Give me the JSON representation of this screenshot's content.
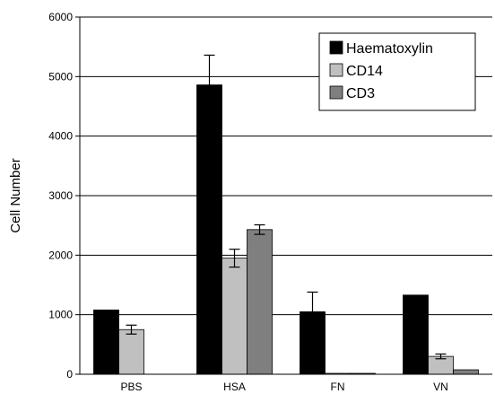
{
  "chart_data": {
    "type": "bar",
    "title": "",
    "xlabel": "",
    "ylabel": "Cell Number",
    "ylim": [
      0,
      6000
    ],
    "yticks": [
      0,
      1000,
      2000,
      3000,
      4000,
      5000,
      6000
    ],
    "grid": "horizontal",
    "legend_position": "top-right",
    "categories": [
      "PBS",
      "HSA",
      "FN",
      "VN"
    ],
    "series": [
      {
        "name": "Haematoxylin",
        "color": "#000000",
        "values": [
          1080,
          4860,
          1050,
          1330
        ],
        "errors": [
          null,
          500,
          330,
          null
        ]
      },
      {
        "name": "CD14",
        "color": "#c0c0c0",
        "values": [
          750,
          1950,
          0,
          300
        ],
        "errors": [
          75,
          150,
          null,
          40
        ]
      },
      {
        "name": "CD3",
        "color": "#7f7f7f",
        "values": [
          null,
          2430,
          15,
          75
        ],
        "errors": [
          null,
          80,
          null,
          null
        ]
      }
    ]
  }
}
